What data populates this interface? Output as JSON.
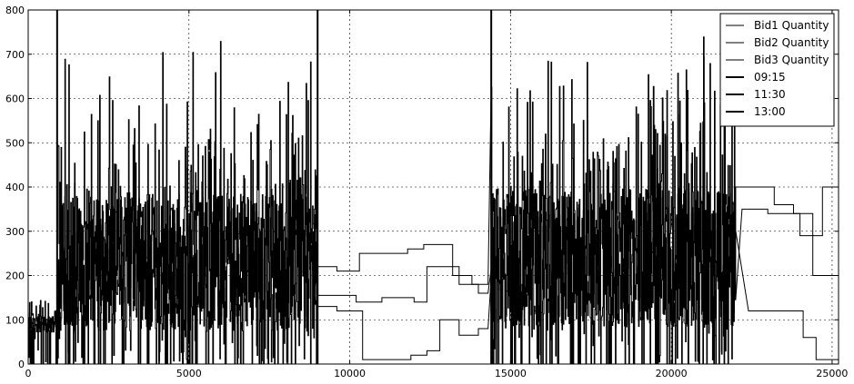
{
  "chart_data": {
    "type": "line",
    "title": "",
    "xlabel": "",
    "ylabel": "",
    "xlim": [
      0,
      25200
    ],
    "ylim": [
      0,
      800
    ],
    "xticks": [
      0,
      5000,
      10000,
      15000,
      20000,
      25000
    ],
    "yticks": [
      0,
      100,
      200,
      300,
      400,
      500,
      600,
      700,
      800
    ],
    "grid": true,
    "legend_position": "top-right",
    "series": [
      {
        "name": "Bid1 Quantity",
        "style": "thin",
        "color": "#000000"
      },
      {
        "name": "Bid2 Quantity",
        "style": "thin",
        "color": "#000000"
      },
      {
        "name": "Bid3 Quantity",
        "style": "thin",
        "color": "#000000"
      }
    ],
    "vlines": [
      {
        "name": "09:15",
        "x": 900
      },
      {
        "name": "11:30",
        "x": 9000
      },
      {
        "name": "13:00",
        "x": 14400
      }
    ],
    "quiet_segments": {
      "Bid1 Quantity": [
        [
          9000,
          130
        ],
        [
          9600,
          130
        ],
        [
          9600,
          120
        ],
        [
          10400,
          120
        ],
        [
          10400,
          10
        ],
        [
          11900,
          10
        ],
        [
          11900,
          20
        ],
        [
          12400,
          20
        ],
        [
          12400,
          30
        ],
        [
          12800,
          30
        ],
        [
          12800,
          100
        ],
        [
          13400,
          100
        ],
        [
          13400,
          65
        ],
        [
          14000,
          65
        ],
        [
          14000,
          80
        ],
        [
          14300,
          80
        ]
      ],
      "Bid2 Quantity": [
        [
          9000,
          155
        ],
        [
          10200,
          155
        ],
        [
          10200,
          140
        ],
        [
          11000,
          140
        ],
        [
          11000,
          150
        ],
        [
          12000,
          150
        ],
        [
          12000,
          140
        ],
        [
          12400,
          140
        ],
        [
          12400,
          220
        ],
        [
          13400,
          220
        ],
        [
          13400,
          180
        ],
        [
          14000,
          180
        ],
        [
          14000,
          160
        ],
        [
          14300,
          160
        ]
      ],
      "Bid3 Quantity": [
        [
          9000,
          220
        ],
        [
          9600,
          220
        ],
        [
          9600,
          210
        ],
        [
          10300,
          210
        ],
        [
          10300,
          250
        ],
        [
          11800,
          250
        ],
        [
          11800,
          260
        ],
        [
          12300,
          260
        ],
        [
          12300,
          270
        ],
        [
          13200,
          270
        ],
        [
          13200,
          200
        ],
        [
          13800,
          200
        ],
        [
          13800,
          180
        ],
        [
          14300,
          180
        ]
      ]
    },
    "late_segments": {
      "Bid1 Quantity": [
        [
          22400,
          120
        ],
        [
          24100,
          120
        ],
        [
          24100,
          60
        ],
        [
          24500,
          60
        ],
        [
          24500,
          10
        ],
        [
          25200,
          10
        ]
      ],
      "Bid2 Quantity": [
        [
          22000,
          400
        ],
        [
          23200,
          400
        ],
        [
          23200,
          360
        ],
        [
          23800,
          360
        ],
        [
          23800,
          340
        ],
        [
          24400,
          340
        ],
        [
          24400,
          200
        ],
        [
          25200,
          200
        ]
      ],
      "Bid3 Quantity": [
        [
          22200,
          350
        ],
        [
          23000,
          350
        ],
        [
          23000,
          340
        ],
        [
          24000,
          340
        ],
        [
          24000,
          290
        ],
        [
          24700,
          290
        ],
        [
          24700,
          400
        ],
        [
          25200,
          400
        ]
      ]
    },
    "active_ranges": [
      {
        "from": 0,
        "to": 900,
        "base": 90,
        "amp": 60
      },
      {
        "from": 900,
        "to": 9000,
        "base": 230,
        "amp": 520
      },
      {
        "from": 14400,
        "to": 22000,
        "base": 240,
        "amp": 520
      }
    ]
  }
}
